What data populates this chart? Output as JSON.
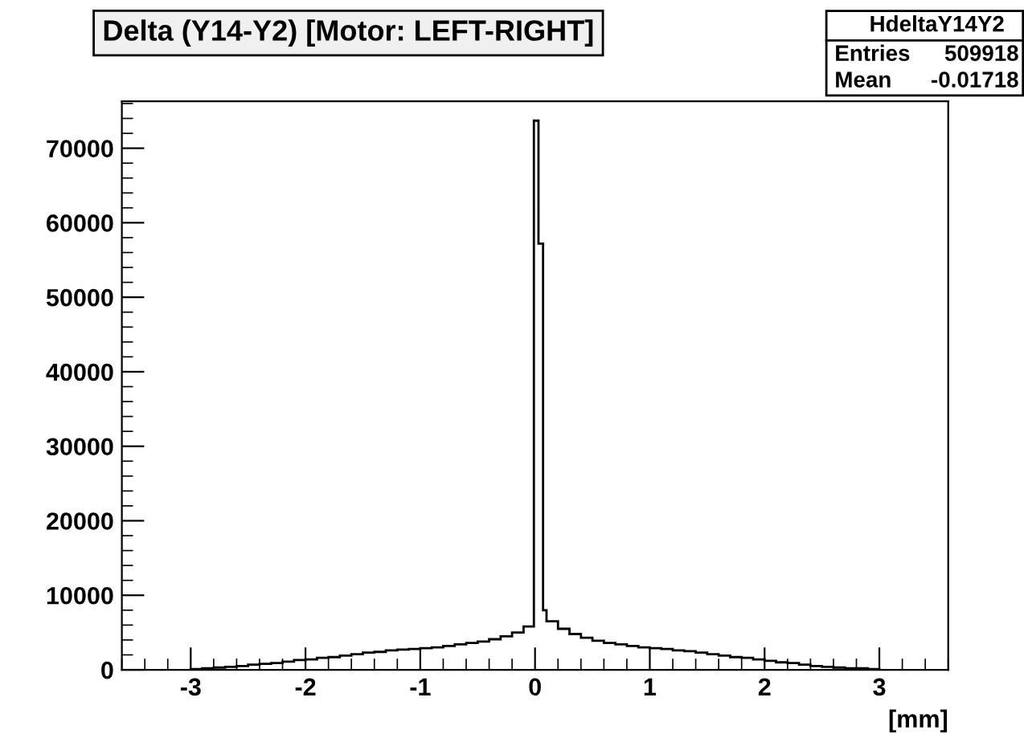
{
  "chart_data": {
    "type": "histogram",
    "title": "Delta (Y14-Y2) [Motor: LEFT-RIGHT]",
    "xlabel": "[mm]",
    "annotations": [
      "HdeltaY14Y2",
      "Entries   509918",
      "Mean   -0.01718"
    ],
    "bins": [
      -3.0,
      -2.9,
      -2.8,
      -2.7,
      -2.6,
      -2.5,
      -2.4,
      -2.3,
      -2.2,
      -2.1,
      -2.0,
      -1.9,
      -1.8,
      -1.7,
      -1.6,
      -1.5,
      -1.4,
      -1.3,
      -1.2,
      -1.1,
      -1.0,
      -0.9,
      -0.8,
      -0.7,
      -0.6,
      -0.5,
      -0.4,
      -0.3,
      -0.2,
      -0.1,
      -0.01,
      0.03,
      0.07,
      0.1,
      0.2,
      0.3,
      0.4,
      0.5,
      0.6,
      0.7,
      0.8,
      0.9,
      1.0,
      1.1,
      1.2,
      1.3,
      1.4,
      1.5,
      1.6,
      1.7,
      1.8,
      1.9,
      2.0,
      2.1,
      2.2,
      2.3,
      2.4,
      2.5,
      2.6,
      2.7,
      2.8,
      2.9,
      3.0
    ],
    "values": [
      100,
      200,
      300,
      400,
      500,
      700,
      800,
      900,
      1100,
      1300,
      1400,
      1600,
      1700,
      1900,
      2100,
      2300,
      2400,
      2600,
      2700,
      2800,
      2900,
      3000,
      3200,
      3400,
      3600,
      3800,
      4100,
      4500,
      5000,
      5800,
      73700,
      57200,
      8000,
      6500,
      5500,
      4800,
      4300,
      3900,
      3600,
      3400,
      3200,
      3000,
      2900,
      2800,
      2600,
      2500,
      2300,
      2100,
      1900,
      1700,
      1600,
      1400,
      1200,
      1000,
      900,
      700,
      500,
      400,
      300,
      200,
      200,
      100
    ],
    "color": "#000000",
    "xlim": [
      -3.6,
      3.6
    ],
    "xticks": [
      -3,
      -2,
      -1,
      0,
      1,
      2,
      3
    ],
    "ylim": [
      0,
      76300
    ],
    "yticks": [
      0,
      10000,
      20000,
      30000,
      40000,
      50000,
      60000,
      70000
    ],
    "grid": false,
    "legend": false
  }
}
